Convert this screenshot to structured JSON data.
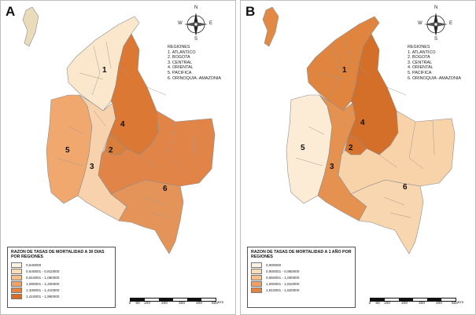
{
  "panels": [
    {
      "letter": "A",
      "colors": {
        "north": "#fbe7cc",
        "atlantico": "#fbe7cc",
        "pacifica": "#f1a86e",
        "central": "#f8d2ad",
        "bogota": "#d97f3b",
        "oriental": "#db7834",
        "east": "#e08447",
        "south": "#e49459",
        "island": "#eadcbb"
      },
      "regions_title": "REGIONES",
      "regions": [
        "1. ATLANTICO",
        "2. BOGOTA",
        "3. CENTRAL",
        "4. ORIENTAL",
        "5. PACIFICA",
        "6. ORINOQUIA -AMAZONIA"
      ],
      "legend_title": "RAZON DE TASAS DE MORTALIDAD A 30 DIAS POR REGIONES",
      "legend_items": [
        {
          "label": "0,640000",
          "color": "#fdf1e1"
        },
        {
          "label": "0,640001 - 0,810000",
          "color": "#fbdcb8"
        },
        {
          "label": "0,810001 - 1,080000",
          "color": "#f6c08d"
        },
        {
          "label": "1,080001 - 1,330000",
          "color": "#f0a163"
        },
        {
          "label": "1,330001 - 1,410000",
          "color": "#e48442"
        },
        {
          "label": "1,410001 - 1,990000",
          "color": "#d86d28"
        }
      ]
    },
    {
      "letter": "B",
      "colors": {
        "north": "#e0853f",
        "atlantico": "#e0853f",
        "pacifica": "#fcecd6",
        "central": "#e5914f",
        "bogota": "#d7732d",
        "oriental": "#d46f2a",
        "east": "#f8d2a8",
        "south": "#f8d6b0",
        "island": "#e28a45"
      },
      "regions_title": "REGIONES",
      "regions": [
        "1. ATLANTICO",
        "2. BOGOTA",
        "3. CENTRAL",
        "4. ORIENTAL",
        "5. PACIFICA",
        "6. ORINOQUIA -AMAZONIA"
      ],
      "legend_title": "RAZON DE TASAS DE MORTALIDAD A 1 AÑO POR REGIONES",
      "legend_items": [
        {
          "label": "0,900000",
          "color": "#fdf1e1"
        },
        {
          "label": "0,900001 - 0,950000",
          "color": "#fbdcb8"
        },
        {
          "label": "0,950001 - 1,000000",
          "color": "#f6c08d"
        },
        {
          "label": "1,000001 - 1,810000",
          "color": "#f0a163"
        },
        {
          "label": "1,810001 - 1,820000",
          "color": "#e48442"
        }
      ]
    }
  ],
  "map_labels": [
    "1",
    "2",
    "3",
    "4",
    "5",
    "6"
  ],
  "compass": {
    "n": "N",
    "s": "S",
    "e": "E",
    "w": "W"
  },
  "scale": {
    "ticks": [
      "0",
      "50",
      "100",
      "200",
      "300",
      "400",
      "500"
    ],
    "unit": "Km"
  }
}
